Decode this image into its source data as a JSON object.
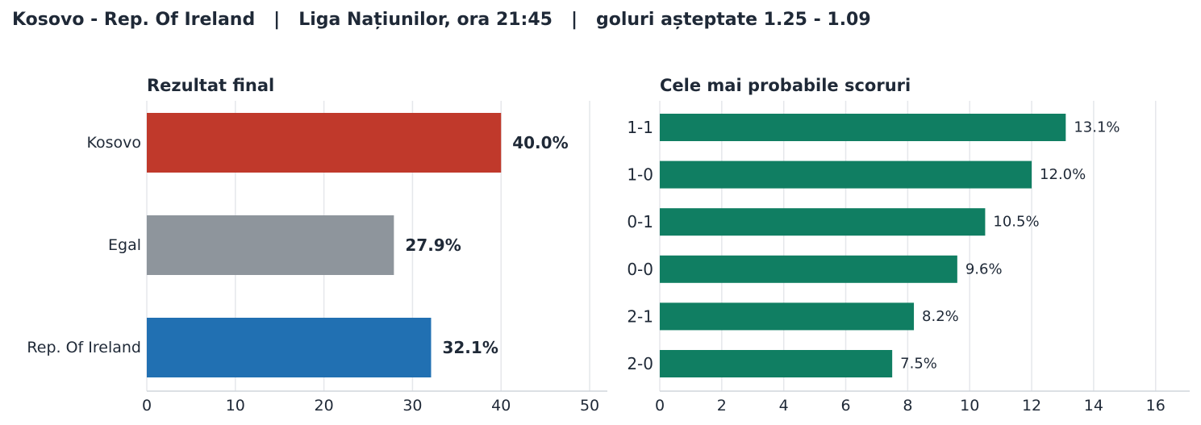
{
  "header": {
    "title": "Kosovo - Rep. Of Ireland   |   Liga Națiunilor, ora 21:45   |   goluri așteptate 1.25 - 1.09"
  },
  "chart_data": [
    {
      "type": "bar",
      "orientation": "horizontal",
      "title": "Rezultat final",
      "categories": [
        "Kosovo",
        "Egal",
        "Rep. Of Ireland"
      ],
      "values": [
        40.0,
        27.9,
        32.1
      ],
      "labels": [
        "40.0%",
        "27.9%",
        "32.1%"
      ],
      "colors": [
        "#c0392b",
        "#8e959c",
        "#2170b2"
      ],
      "xlim": [
        0,
        52
      ],
      "xticks": [
        0,
        10,
        20,
        30,
        40,
        50
      ],
      "grid": true
    },
    {
      "type": "bar",
      "orientation": "horizontal",
      "title": "Cele mai probabile scoruri",
      "categories": [
        "1-1",
        "1-0",
        "0-1",
        "0-0",
        "2-1",
        "2-0"
      ],
      "values": [
        13.1,
        12.0,
        10.5,
        9.6,
        8.2,
        7.5
      ],
      "labels": [
        "13.1%",
        "12.0%",
        "10.5%",
        "9.6%",
        "8.2%",
        "7.5%"
      ],
      "color": "#107e62",
      "xlim": [
        0,
        17.1
      ],
      "xticks": [
        0,
        2,
        4,
        6,
        8,
        10,
        12,
        14,
        16
      ],
      "grid": true
    }
  ]
}
